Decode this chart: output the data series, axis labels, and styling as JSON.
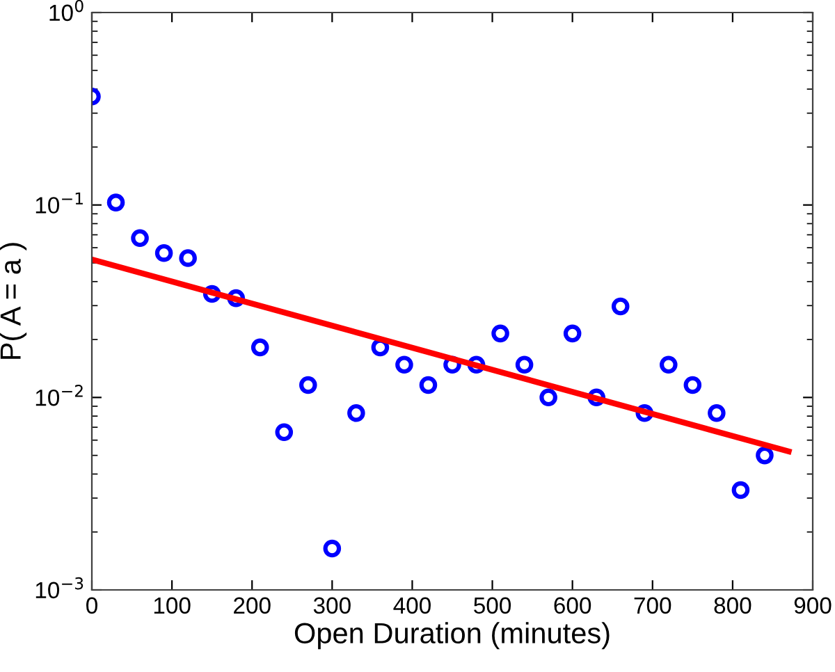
{
  "chart_data": {
    "type": "scatter",
    "xlabel": "Open Duration (minutes)",
    "ylabel": "P( A = a )",
    "log": "y",
    "xlim": [
      0,
      900
    ],
    "xticks": [
      0,
      100,
      200,
      300,
      400,
      500,
      600,
      700,
      800,
      900
    ],
    "ylim": [
      0.001,
      1
    ],
    "yticks": [
      {
        "value": 0.001,
        "label": "10$^{−3}$"
      },
      {
        "value": 0.01,
        "label": "10$^{−2}$"
      },
      {
        "value": 0.1,
        "label": "10$^{−1}$"
      },
      {
        "value": 1,
        "label": "10$^{0}$"
      }
    ],
    "grid": false,
    "series": [
      {
        "marker": "circle",
        "color": "#0000ff",
        "x": [
          0,
          30,
          60,
          90,
          120,
          150,
          180,
          210,
          240,
          270,
          300,
          330,
          360,
          390,
          420,
          450,
          480,
          510,
          540,
          570,
          600,
          630,
          660,
          690,
          720,
          750,
          780,
          810,
          840
        ],
        "values": [
          0.366,
          0.103,
          0.0673,
          0.0563,
          0.053,
          0.0345,
          0.0328,
          0.0182,
          0.0066,
          0.0116,
          0.00164,
          0.0083,
          0.0182,
          0.0148,
          0.0116,
          0.0148,
          0.0148,
          0.0215,
          0.0148,
          0.01,
          0.0215,
          0.01,
          0.0297,
          0.0083,
          0.0148,
          0.0116,
          0.0083,
          0.0033,
          0.005
        ]
      },
      {
        "type": "line",
        "line_style": "solid",
        "color": "#ff0000",
        "x": [
          0,
          870
        ],
        "values": [
          0.0521,
          0.00524
        ]
      }
    ]
  }
}
